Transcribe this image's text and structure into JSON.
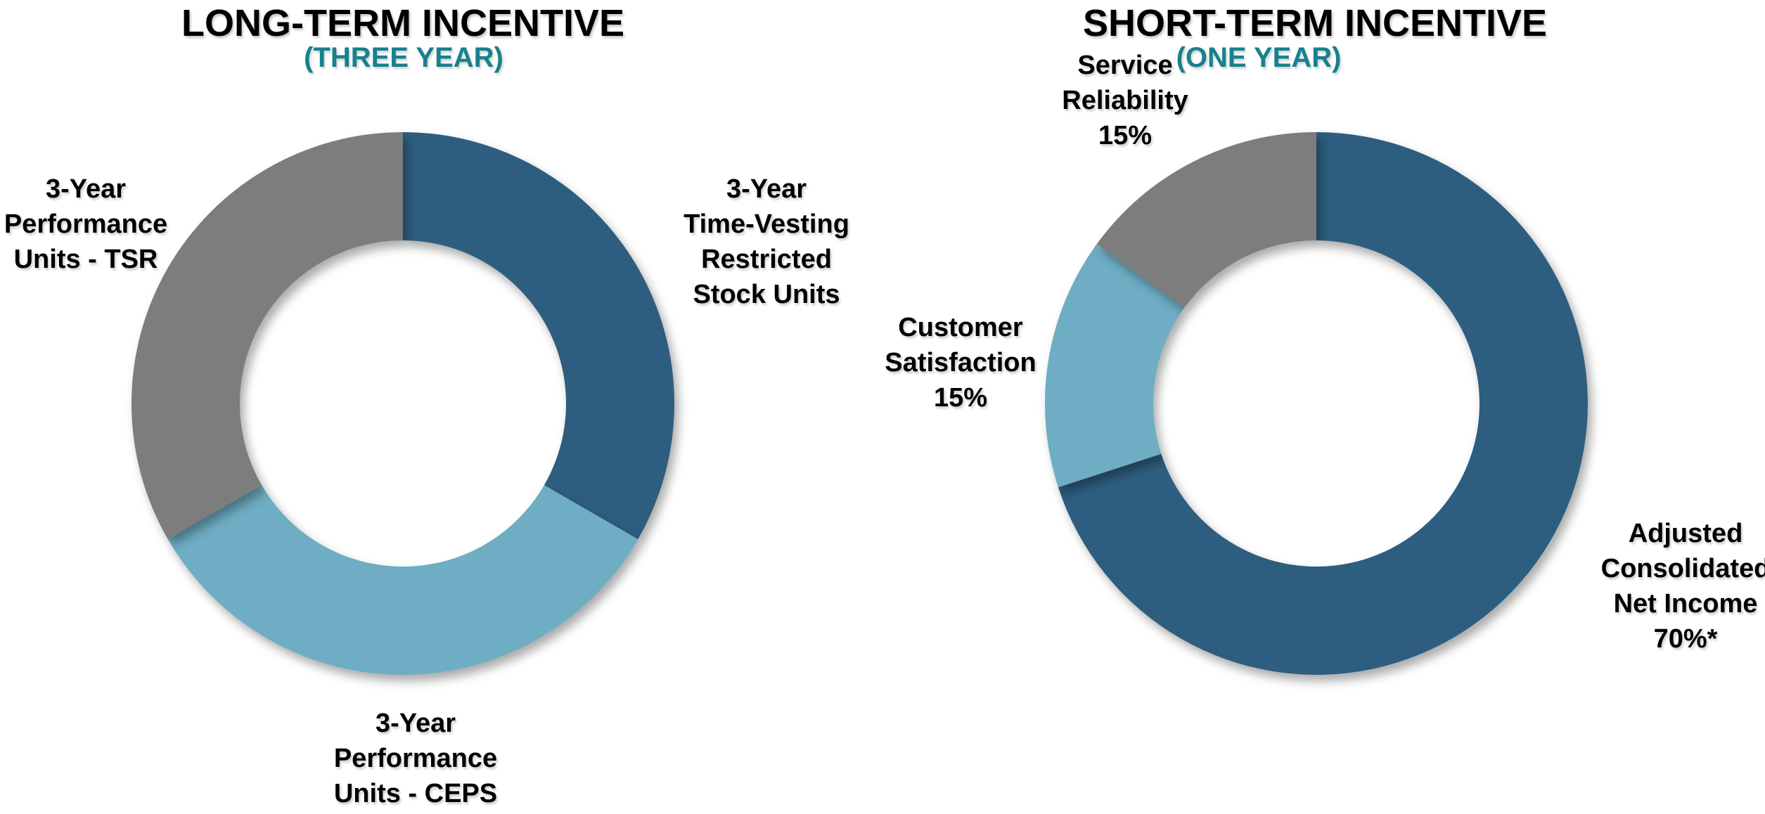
{
  "colors": {
    "dark_blue": "#2D5E80",
    "light_blue": "#6EADC3",
    "gray": "#7D7D7D",
    "teal_accent": "#17818E",
    "text_black": "#000000",
    "background": "#FFFFFF"
  },
  "chart_data": [
    {
      "type": "pie",
      "variant": "donut",
      "title": "LONG-TERM INCENTIVE",
      "subtitle": "(THREE YEAR)",
      "inner_radius_ratio": 0.6,
      "start_angle_deg": 0,
      "direction": "clockwise",
      "legend_position": "outside-labels",
      "slices": [
        {
          "label": "3-Year Time-Vesting Restricted Stock Units",
          "label_lines": [
            "3-Year",
            "Time-Vesting",
            "Restricted",
            "Stock Units"
          ],
          "value": 33.34,
          "color": "#2D5E80"
        },
        {
          "label": "3-Year Performance Units - CEPS",
          "label_lines": [
            "3-Year",
            "Performance",
            "Units - CEPS"
          ],
          "value": 33.33,
          "color": "#6EADC3"
        },
        {
          "label": "3-Year Performance Units - TSR",
          "label_lines": [
            "3-Year",
            "Performance",
            "Units - TSR"
          ],
          "value": 33.33,
          "color": "#7D7D7D"
        }
      ]
    },
    {
      "type": "pie",
      "variant": "donut",
      "title": "SHORT-TERM INCENTIVE",
      "subtitle": "(ONE YEAR)",
      "inner_radius_ratio": 0.6,
      "start_angle_deg": 0,
      "direction": "clockwise",
      "legend_position": "outside-labels",
      "slices": [
        {
          "label": "Adjusted Consolidated Net Income 70%*",
          "label_lines": [
            "Adjusted",
            "Consolidated",
            "Net Income",
            "70%*"
          ],
          "value": 70,
          "color": "#2D5E80"
        },
        {
          "label": "Customer Satisfaction 15%",
          "label_lines": [
            "Customer",
            "Satisfaction",
            "15%"
          ],
          "value": 15,
          "color": "#6EADC3"
        },
        {
          "label": "Service Reliability 15%",
          "label_lines": [
            "Service",
            "Reliability",
            "15%"
          ],
          "value": 15,
          "color": "#7D7D7D"
        }
      ]
    }
  ]
}
